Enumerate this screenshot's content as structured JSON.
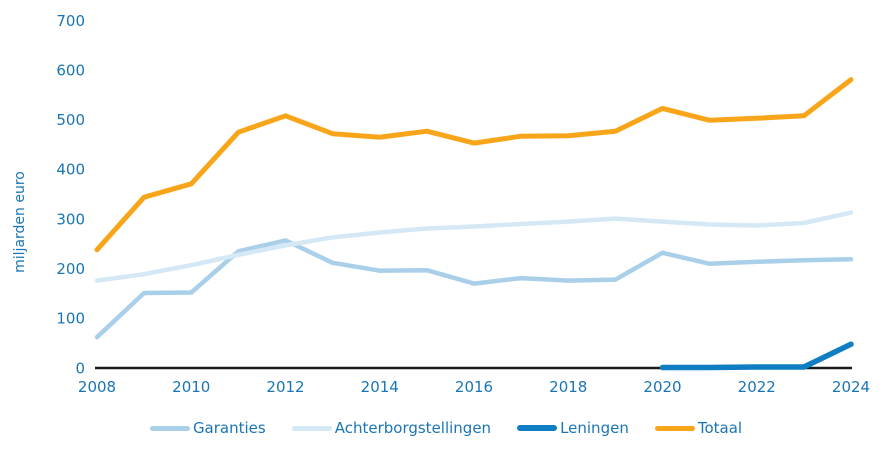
{
  "colors": {
    "axis_text": "#1a75b5",
    "axis_line": "#1a1a1a",
    "background": "#ffffff"
  },
  "chart_data": {
    "type": "line",
    "title": "",
    "xlabel": "",
    "ylabel": "miljarden euro",
    "ylim": [
      0,
      700
    ],
    "xlim": [
      2008,
      2024
    ],
    "grid": false,
    "legend_position": "bottom",
    "y_ticks": [
      0,
      100,
      200,
      300,
      400,
      500,
      600,
      700
    ],
    "x_ticks": [
      2008,
      2010,
      2012,
      2014,
      2016,
      2018,
      2020,
      2022,
      2024
    ],
    "x": [
      2008,
      2009,
      2010,
      2011,
      2012,
      2013,
      2014,
      2015,
      2016,
      2017,
      2018,
      2019,
      2020,
      2021,
      2022,
      2023,
      2024
    ],
    "series": [
      {
        "name": "Garanties",
        "color": "#a9cfe9",
        "stroke_width": 4.5,
        "values": [
          62,
          151,
          152,
          235,
          257,
          212,
          196,
          197,
          170,
          181,
          176,
          178,
          232,
          210,
          214,
          217,
          219
        ]
      },
      {
        "name": "Achterborgstellingen",
        "color": "#d5e8f5",
        "stroke_width": 4.5,
        "values": [
          176,
          189,
          207,
          228,
          247,
          263,
          273,
          281,
          285,
          290,
          295,
          301,
          295,
          289,
          287,
          292,
          313
        ]
      },
      {
        "name": "Leningen",
        "color": "#0e7dc2",
        "stroke_width": 5.5,
        "values": [
          null,
          null,
          null,
          null,
          null,
          null,
          null,
          null,
          null,
          null,
          null,
          null,
          1,
          1,
          2,
          2,
          48
        ]
      },
      {
        "name": "Totaal",
        "color": "#f9a51a",
        "stroke_width": 5,
        "values": [
          238,
          344,
          371,
          475,
          508,
          472,
          465,
          477,
          453,
          467,
          468,
          477,
          523,
          499,
          503,
          508,
          581
        ]
      }
    ]
  }
}
